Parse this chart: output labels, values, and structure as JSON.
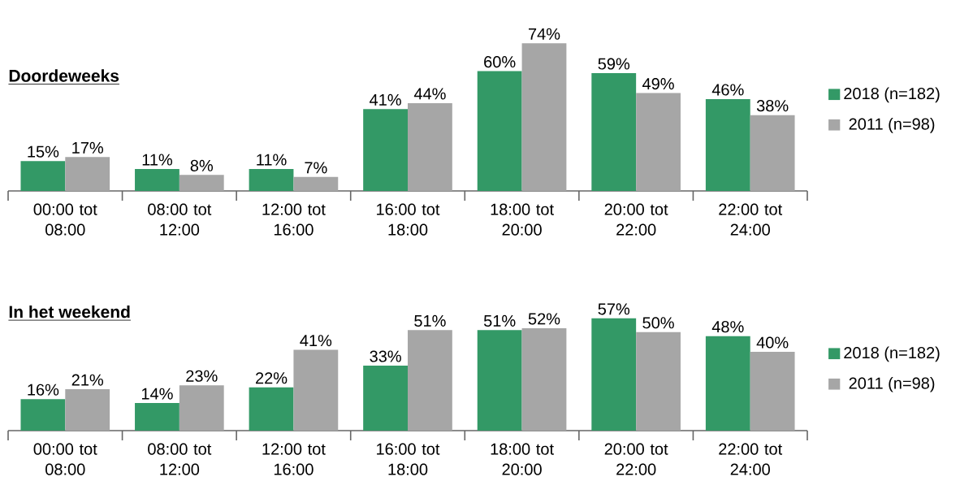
{
  "chart_data": [
    {
      "type": "bar",
      "title": "Doordeweeks",
      "legend": "right",
      "categories": [
        "00:00 tot 08:00",
        "08:00 tot 12:00",
        "12:00 tot 16:00",
        "16:00 tot 18:00",
        "18:00 tot 20:00",
        "20:00 tot 22:00",
        "22:00 tot 24:00"
      ],
      "series": [
        {
          "name": "2018 (n=182)",
          "color": "#339966",
          "values": [
            15,
            11,
            11,
            41,
            60,
            59,
            46
          ],
          "value_labels": [
            "15%",
            "11%",
            "11%",
            "41%",
            "60%",
            "59%",
            "46%"
          ]
        },
        {
          "name": "2011 (n=98)",
          "color": "#a6a6a6",
          "values": [
            17,
            8,
            7,
            44,
            74,
            49,
            38
          ],
          "value_labels": [
            "17%",
            "8%",
            "7%",
            "44%",
            "74%",
            "49%",
            "38%"
          ]
        }
      ]
    },
    {
      "type": "bar",
      "title": "In het weekend",
      "legend": "right",
      "categories": [
        "00:00 tot 08:00",
        "08:00 tot 12:00",
        "12:00 tot 16:00",
        "16:00 tot 18:00",
        "18:00 tot 20:00",
        "20:00 tot 22:00",
        "22:00 tot 24:00"
      ],
      "series": [
        {
          "name": "2018 (n=182)",
          "color": "#339966",
          "values": [
            16,
            14,
            22,
            33,
            51,
            57,
            48
          ],
          "value_labels": [
            "16%",
            "14%",
            "22%",
            "33%",
            "51%",
            "57%",
            "48%"
          ]
        },
        {
          "name": "2011 (n=98)",
          "color": "#a6a6a6",
          "values": [
            21,
            23,
            41,
            51,
            52,
            50,
            40
          ],
          "value_labels": [
            "21%",
            "23%",
            "41%",
            "51%",
            "52%",
            "50%",
            "40%"
          ]
        }
      ]
    }
  ]
}
